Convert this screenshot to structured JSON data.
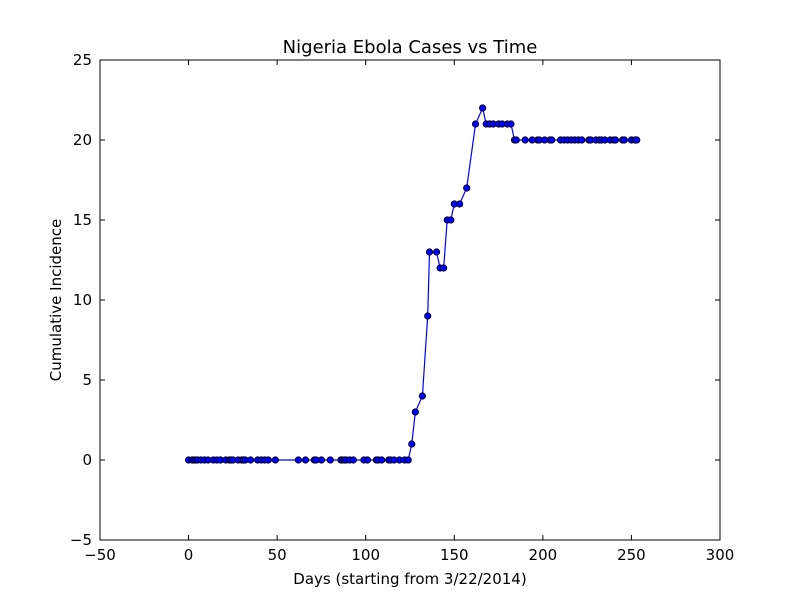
{
  "chart_data": {
    "type": "line",
    "title": "Nigeria Ebola Cases vs Time",
    "xlabel": "Days (starting from 3/22/2014)",
    "ylabel": "Cumulative Incidence",
    "xlim": [
      -50,
      300
    ],
    "ylim": [
      -5,
      25
    ],
    "xticks": [
      -50,
      0,
      50,
      100,
      150,
      200,
      250,
      300
    ],
    "yticks": [
      -5,
      0,
      5,
      10,
      15,
      20,
      25
    ],
    "grid": false,
    "legend": "none",
    "colors": {
      "line": "#0000ff",
      "marker_face": "#0000ff",
      "marker_edge": "#000000",
      "axes": "#000000"
    },
    "series": [
      {
        "x": [
          0,
          2,
          3,
          4,
          5,
          7,
          9,
          11,
          14,
          16,
          18,
          21,
          23,
          24,
          25,
          28,
          30,
          31,
          32,
          35,
          39,
          41,
          43,
          45,
          49,
          62,
          66,
          71,
          72,
          75,
          80,
          86,
          87,
          88,
          89,
          91,
          93,
          99,
          101,
          106,
          107,
          109,
          113,
          114,
          116,
          119,
          122,
          124,
          126,
          128,
          132,
          135,
          136,
          140,
          142,
          144,
          146,
          148,
          150,
          153,
          157,
          162,
          166,
          168,
          170,
          172,
          175,
          177,
          180,
          182,
          184,
          185,
          190,
          194,
          197,
          198,
          201,
          204,
          205,
          210,
          212,
          214,
          216,
          218,
          220,
          222,
          226,
          227,
          230,
          232,
          233,
          235,
          238,
          240,
          241,
          245,
          246,
          250,
          252,
          253
        ],
        "y": [
          0,
          0,
          0,
          0,
          0,
          0,
          0,
          0,
          0,
          0,
          0,
          0,
          0,
          0,
          0,
          0,
          0,
          0,
          0,
          0,
          0,
          0,
          0,
          0,
          0,
          0,
          0,
          0,
          0,
          0,
          0,
          0,
          0,
          0,
          0,
          0,
          0,
          0,
          0,
          0,
          0,
          0,
          0,
          0,
          0,
          0,
          0,
          0,
          1,
          3,
          4,
          9,
          13,
          13,
          12,
          12,
          15,
          15,
          16,
          16,
          17,
          21,
          22,
          21,
          21,
          21,
          21,
          21,
          21,
          21,
          20,
          20,
          20,
          20,
          20,
          20,
          20,
          20,
          20,
          20,
          20,
          20,
          20,
          20,
          20,
          20,
          20,
          20,
          20,
          20,
          20,
          20,
          20,
          20,
          20,
          20,
          20,
          20,
          20,
          20
        ]
      }
    ]
  }
}
